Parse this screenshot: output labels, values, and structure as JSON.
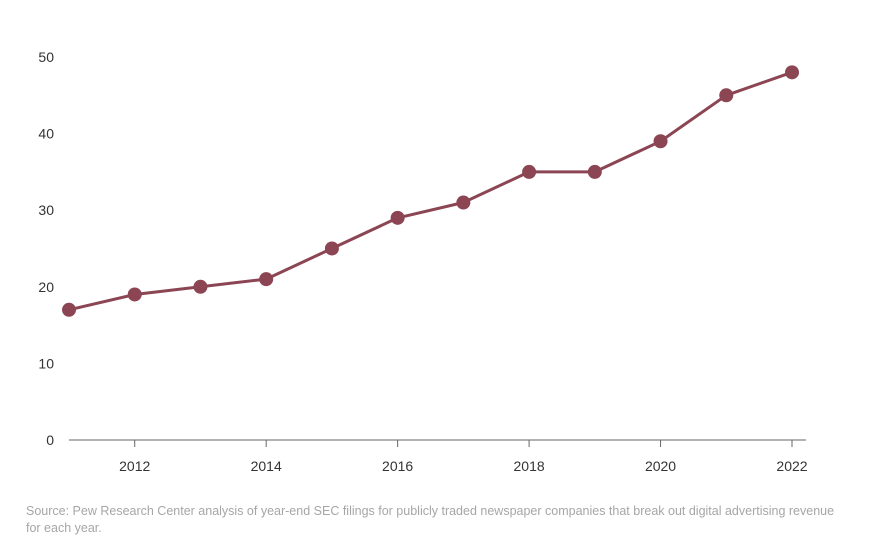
{
  "chart_data": {
    "type": "line",
    "title": "",
    "xlabel": "",
    "ylabel": "",
    "x": [
      2011,
      2012,
      2013,
      2014,
      2015,
      2016,
      2017,
      2018,
      2019,
      2020,
      2021,
      2022
    ],
    "series": [
      {
        "values": [
          17,
          19,
          20,
          21,
          25,
          29,
          31,
          35,
          35,
          39,
          45,
          48
        ],
        "color": "#8b4553"
      }
    ],
    "xlim": [
      2011,
      2022
    ],
    "ylim": [
      0,
      50
    ],
    "x_ticks": [
      2012,
      2014,
      2016,
      2018,
      2020,
      2022
    ],
    "y_ticks": [
      0,
      10,
      20,
      30,
      40,
      50
    ],
    "grid": false,
    "markers": true
  },
  "source_note": "Source: Pew Research Center analysis of year-end SEC filings for publicly traded newspaper companies that break out digital advertising revenue for each year.",
  "colors": {
    "series_line": "#8b4553",
    "axis": "#666666",
    "tick_text": "#333333",
    "note_text": "#a6a6a6"
  }
}
